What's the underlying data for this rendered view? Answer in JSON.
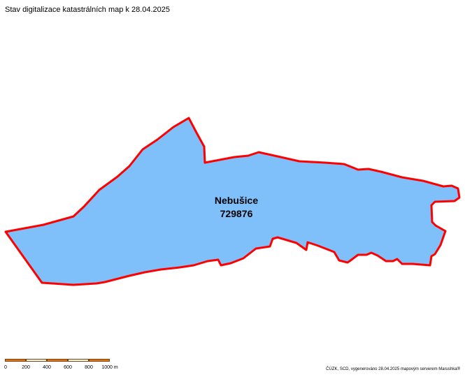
{
  "title": "Stav digitalizace katastrálních map k 28.04.2025",
  "parcel": {
    "name": "Nebušice",
    "code": "729876",
    "fill_color": "#7fbffa",
    "border_color": "#ff0000"
  },
  "scale_bar": {
    "labels": [
      "0",
      "200",
      "400",
      "600",
      "800",
      "1000 m"
    ],
    "colors": [
      "#e07a1f",
      "#ffffff"
    ]
  },
  "credits": "ČÚZK, SCD, vygenerováno 28.04.2025 mapovým serverem Marushka®"
}
